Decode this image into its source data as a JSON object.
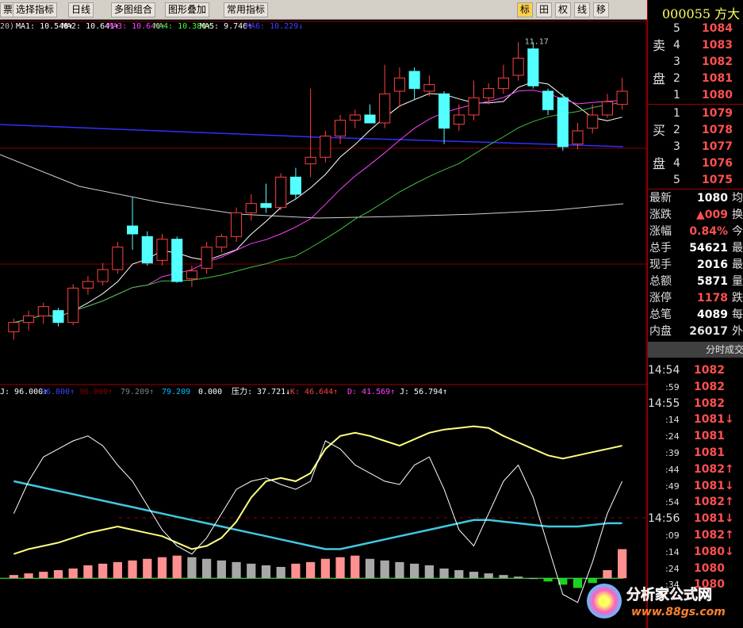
{
  "toolbar": {
    "left_items": [
      "票",
      "选择指标",
      "日线",
      "多图组合",
      "图形叠加",
      "常用指标"
    ],
    "right_items": [
      "标",
      "田",
      "权",
      "线",
      "移"
    ]
  },
  "main_chart": {
    "ma_labels": [
      "20)",
      "MA1: 10.548↑",
      "MA2: 10.641↑",
      "MA3: 10.640↑",
      "MA4: 10.380↑",
      "MA5: 9.746↑",
      "MA6: 10.229↓"
    ],
    "ma_colors": [
      "#c0c0c0",
      "#ffffff",
      "#ffffff",
      "#ff40ff",
      "#40ff40",
      "#ffffff",
      "#4040ff"
    ],
    "peak_label": "11.17",
    "ylim": [
      8.85,
      11.25
    ],
    "candles": [
      [
        8.98,
        9.08,
        8.92,
        9.05
      ],
      [
        9.05,
        9.14,
        8.99,
        9.1
      ],
      [
        9.1,
        9.2,
        9.04,
        9.17
      ],
      [
        9.14,
        9.16,
        9.02,
        9.05
      ],
      [
        9.05,
        9.34,
        9.03,
        9.31
      ],
      [
        9.31,
        9.4,
        9.26,
        9.36
      ],
      [
        9.36,
        9.5,
        9.33,
        9.45
      ],
      [
        9.45,
        9.66,
        9.42,
        9.62
      ],
      [
        9.78,
        10.0,
        9.6,
        9.72
      ],
      [
        9.7,
        9.74,
        9.48,
        9.5
      ],
      [
        9.52,
        9.72,
        9.48,
        9.68
      ],
      [
        9.68,
        9.7,
        9.35,
        9.36
      ],
      [
        9.38,
        9.48,
        9.32,
        9.44
      ],
      [
        9.46,
        9.66,
        9.42,
        9.62
      ],
      [
        9.62,
        9.72,
        9.58,
        9.7
      ],
      [
        9.7,
        9.92,
        9.66,
        9.88
      ],
      [
        9.88,
        10.02,
        9.82,
        9.95
      ],
      [
        9.95,
        10.1,
        9.88,
        9.92
      ],
      [
        9.92,
        10.18,
        9.9,
        10.15
      ],
      [
        10.15,
        10.22,
        9.98,
        10.02
      ],
      [
        10.25,
        10.82,
        10.15,
        10.3
      ],
      [
        10.3,
        10.5,
        10.26,
        10.46
      ],
      [
        10.46,
        10.62,
        10.4,
        10.58
      ],
      [
        10.58,
        10.66,
        10.52,
        10.62
      ],
      [
        10.62,
        10.7,
        10.56,
        10.56
      ],
      [
        10.56,
        11.0,
        10.52,
        10.78
      ],
      [
        10.8,
        10.98,
        10.68,
        10.9
      ],
      [
        10.95,
        10.98,
        10.74,
        10.82
      ],
      [
        10.8,
        10.92,
        10.76,
        10.85
      ],
      [
        10.78,
        10.8,
        10.4,
        10.52
      ],
      [
        10.55,
        10.7,
        10.5,
        10.62
      ],
      [
        10.62,
        10.88,
        10.58,
        10.75
      ],
      [
        10.75,
        10.86,
        10.7,
        10.82
      ],
      [
        10.82,
        11.0,
        10.78,
        10.9
      ],
      [
        10.92,
        11.17,
        10.88,
        11.05
      ],
      [
        11.12,
        11.17,
        10.82,
        10.84
      ],
      [
        10.8,
        10.82,
        10.62,
        10.66
      ],
      [
        10.75,
        10.78,
        10.35,
        10.38
      ],
      [
        10.4,
        10.56,
        10.36,
        10.5
      ],
      [
        10.52,
        10.7,
        10.48,
        10.62
      ],
      [
        10.62,
        10.78,
        10.6,
        10.72
      ],
      [
        10.7,
        10.9,
        10.66,
        10.8
      ]
    ]
  },
  "indicator": {
    "labels": [
      "J: 96.000↑",
      "96.000↑",
      "96.000↑",
      "79.209↑",
      "79.209",
      "0.000",
      "压力: 37.721↓",
      "K: 46.644↑",
      "D: 41.569↑",
      "J: 56.794↑"
    ],
    "label_colors": [
      "#ffffff",
      "#4040ff",
      "#800000",
      "#808080",
      "#00c0ff",
      "#ffffff",
      "#ffffff",
      "#ff4040",
      "#ff40ff",
      "#ffffff"
    ],
    "ylim": [
      -20,
      110
    ],
    "bars": [
      2,
      3,
      4,
      5,
      6,
      8,
      9,
      10,
      11,
      12,
      13,
      14,
      13,
      12,
      11,
      10,
      9,
      8,
      7,
      9,
      10,
      12,
      13,
      14,
      12,
      11,
      10,
      9,
      8,
      6,
      5,
      4,
      3,
      2,
      1,
      0,
      -2,
      -4,
      -6,
      -3,
      5,
      18
    ],
    "k": [
      15,
      18,
      20,
      22,
      25,
      28,
      30,
      32,
      30,
      28,
      26,
      22,
      18,
      20,
      25,
      35,
      50,
      60,
      62,
      60,
      65,
      80,
      88,
      90,
      88,
      85,
      82,
      86,
      90,
      92,
      93,
      94,
      93,
      88,
      84,
      80,
      76,
      74,
      76,
      78,
      80,
      82
    ],
    "d": [
      60,
      58,
      56,
      54,
      52,
      50,
      48,
      46,
      44,
      42,
      40,
      38,
      36,
      34,
      32,
      30,
      28,
      26,
      24,
      22,
      20,
      18,
      18,
      20,
      22,
      24,
      26,
      28,
      30,
      32,
      34,
      36,
      36,
      35,
      34,
      33,
      32,
      32,
      32,
      33,
      34,
      34
    ],
    "j": [
      40,
      60,
      75,
      80,
      85,
      88,
      82,
      70,
      60,
      45,
      30,
      20,
      15,
      25,
      40,
      55,
      60,
      62,
      58,
      55,
      60,
      85,
      80,
      70,
      65,
      60,
      58,
      70,
      75,
      55,
      30,
      20,
      40,
      60,
      70,
      50,
      20,
      -10,
      -15,
      10,
      40,
      60
    ]
  },
  "side": {
    "title": "000055 方大",
    "sell": {
      "label": [
        "卖",
        "盘"
      ],
      "levels": [
        "5",
        "4",
        "3",
        "2",
        "1"
      ],
      "prices": [
        1084,
        1083,
        1082,
        1081,
        1080
      ]
    },
    "buy": {
      "label": [
        "买",
        "盘"
      ],
      "levels": [
        "1",
        "2",
        "3",
        "4",
        "5"
      ],
      "prices": [
        1079,
        1078,
        1077,
        1076,
        1075
      ]
    },
    "stats": [
      [
        "最新",
        "1080",
        "均"
      ],
      [
        "涨跌",
        "▲009",
        "换"
      ],
      [
        "涨幅",
        "0.84%",
        "今"
      ],
      [
        "总手",
        "54621",
        "最"
      ],
      [
        "现手",
        "2016",
        "最"
      ],
      [
        "总额",
        "5871",
        "量"
      ],
      [
        "涨停",
        "1178",
        "跌"
      ],
      [
        "总笔",
        "4089",
        "每"
      ],
      [
        "内盘",
        "26017",
        "外"
      ]
    ],
    "ticks_title": "分时成交",
    "ticks": [
      [
        "14:54",
        "1082"
      ],
      [
        ":59",
        "1082"
      ],
      [
        "14:55",
        "1082"
      ],
      [
        ":14",
        "1081↓"
      ],
      [
        ":24",
        "1081"
      ],
      [
        ":39",
        "1081"
      ],
      [
        ":44",
        "1082↑"
      ],
      [
        ":49",
        "1081↓"
      ],
      [
        ":54",
        "1082↑"
      ],
      [
        "14:56",
        "1081↓"
      ],
      [
        ":09",
        "1082↑"
      ],
      [
        ":14",
        "1080↓"
      ],
      [
        ":24",
        "1080"
      ],
      [
        ":34",
        "1080"
      ]
    ]
  },
  "watermark": {
    "name": "分析家公式网",
    "url": "www.88gs.com"
  }
}
